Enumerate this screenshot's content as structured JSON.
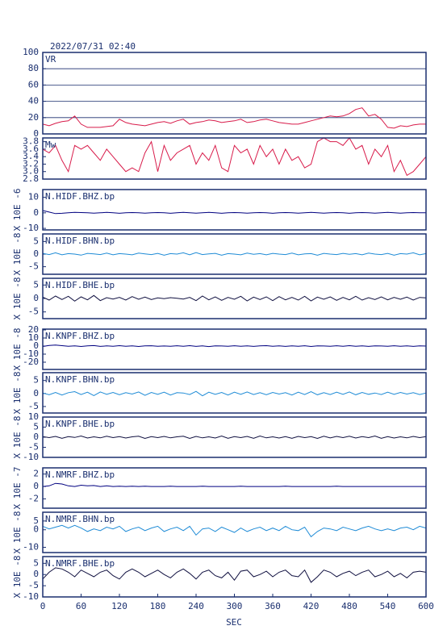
{
  "title": "2022/07/31 02:40",
  "x_axis": {
    "label": "SEC",
    "xlim": [
      0,
      600
    ],
    "xticks": [
      0,
      60,
      120,
      180,
      240,
      300,
      360,
      420,
      480,
      540,
      600
    ],
    "x": [
      0,
      10,
      20,
      30,
      40,
      50,
      60,
      70,
      80,
      90,
      100,
      110,
      120,
      130,
      140,
      150,
      160,
      170,
      180,
      190,
      200,
      210,
      220,
      230,
      240,
      250,
      260,
      270,
      280,
      290,
      300,
      310,
      320,
      330,
      340,
      350,
      360,
      370,
      380,
      390,
      400,
      410,
      420,
      430,
      440,
      450,
      460,
      470,
      480,
      490,
      500,
      510,
      520,
      530,
      540,
      550,
      560,
      570,
      580,
      590,
      600
    ]
  },
  "chart_data": [
    {
      "type": "line",
      "name": "VR",
      "ylim": [
        0,
        100
      ],
      "yticks": [
        0,
        20,
        40,
        60,
        80,
        100
      ],
      "grid": true,
      "color": "#d81b4a",
      "values": [
        12,
        10,
        13,
        15,
        16,
        22,
        12,
        8,
        8,
        8,
        9,
        10,
        18,
        14,
        12,
        11,
        10,
        12,
        14,
        15,
        13,
        16,
        18,
        12,
        14,
        15,
        17,
        16,
        14,
        15,
        16,
        18,
        14,
        15,
        17,
        18,
        16,
        14,
        13,
        12,
        12,
        14,
        16,
        18,
        20,
        22,
        21,
        22,
        25,
        30,
        32,
        22,
        24,
        18,
        8,
        7,
        10,
        9,
        11,
        12,
        12
      ]
    },
    {
      "type": "line",
      "name": "Mw",
      "ylim": [
        2.8,
        3.9
      ],
      "yticks": [
        2.8,
        {
          "value": 3,
          "label": "3.0"
        },
        3.2,
        3.4,
        3.6,
        3.8
      ],
      "grid": false,
      "color": "#d81b4a",
      "values": [
        3.6,
        3.5,
        3.7,
        3.3,
        3.0,
        3.7,
        3.6,
        3.7,
        3.5,
        3.3,
        3.6,
        3.4,
        3.2,
        3.0,
        3.1,
        3.0,
        3.5,
        3.8,
        3.0,
        3.7,
        3.3,
        3.5,
        3.6,
        3.7,
        3.2,
        3.5,
        3.3,
        3.7,
        3.1,
        3.0,
        3.7,
        3.5,
        3.6,
        3.2,
        3.7,
        3.4,
        3.6,
        3.2,
        3.6,
        3.3,
        3.4,
        3.1,
        3.2,
        3.8,
        3.9,
        3.8,
        3.8,
        3.7,
        3.9,
        3.6,
        3.7,
        3.2,
        3.6,
        3.4,
        3.7,
        3.0,
        3.3,
        2.9,
        3.0,
        3.2,
        3.4
      ]
    },
    {
      "type": "line",
      "name": "N.HIDF.BHZ.bp",
      "ylabel": "X 10E -6",
      "ylim": [
        -11,
        15
      ],
      "yticks": [
        -10,
        0,
        10
      ],
      "grid": false,
      "color": "#000080",
      "values": [
        1.5,
        0.5,
        -0.5,
        -0.3,
        0,
        0.3,
        0.2,
        0,
        -0.2,
        0,
        0.3,
        0,
        -0.3,
        0,
        0.2,
        0,
        -0.2,
        0,
        0.2,
        0,
        -0.3,
        0,
        0.3,
        0,
        -0.2,
        0,
        0.3,
        0,
        -0.3,
        0,
        0.2,
        0,
        -0.2,
        0,
        0.2,
        0,
        -0.3,
        0,
        0.2,
        0,
        -0.2,
        0,
        0.3,
        0,
        -0.2,
        0,
        0.2,
        0,
        -0.3,
        0,
        0.2,
        0,
        -0.2,
        0,
        0.3,
        0,
        -0.2,
        0,
        0.2,
        0,
        0
      ]
    },
    {
      "type": "line",
      "name": "N.HIDF.BHN.bp",
      "ylabel": "X 10E -8",
      "ylim": [
        -8,
        8
      ],
      "yticks": [
        -5,
        0,
        5
      ],
      "grid": false,
      "color": "#1e8bd6",
      "values": [
        0.3,
        -0.2,
        0.5,
        -0.3,
        0.2,
        0,
        -0.4,
        0.3,
        0.1,
        -0.2,
        0.4,
        -0.3,
        0.2,
        0,
        -0.3,
        0.4,
        0.1,
        -0.2,
        0.3,
        -0.4,
        0.2,
        0,
        0.5,
        -0.3,
        0.6,
        -0.2,
        0.1,
        0.3,
        -0.4,
        0.2,
        0,
        -0.3,
        0.4,
        -0.1,
        0.2,
        -0.3,
        0.3,
        0,
        -0.2,
        0.4,
        -0.3,
        0.1,
        0.2,
        -0.4,
        0.3,
        0,
        -0.2,
        0.3,
        -0.1,
        0.2,
        -0.3,
        0.4,
        0,
        -0.2,
        0.3,
        -0.4,
        0.2,
        0,
        0.5,
        -0.3,
        0.2
      ]
    },
    {
      "type": "line",
      "name": "N.HIDF.BHE.bp",
      "ylabel": "X 10E -8",
      "ylim": [
        -7.5,
        7.5
      ],
      "yticks": [
        -5,
        0,
        5
      ],
      "grid": false,
      "color": "#101040",
      "values": [
        0.5,
        -0.6,
        0.9,
        -0.4,
        0.8,
        -1.0,
        0.6,
        -0.5,
        1.1,
        -0.8,
        0.3,
        -0.2,
        0.4,
        -0.6,
        0.7,
        -0.3,
        0.5,
        -0.4,
        0.2,
        -0.1,
        0.3,
        0.1,
        -0.2,
        0.4,
        -0.8,
        0.9,
        -0.5,
        0.6,
        -0.7,
        0.4,
        -0.3,
        0.8,
        -0.9,
        0.5,
        -0.4,
        0.6,
        -0.8,
        0.7,
        -0.5,
        0.4,
        -0.6,
        0.8,
        -0.9,
        0.5,
        -0.3,
        0.6,
        -0.7,
        0.4,
        -0.5,
        0.8,
        -0.6,
        0.3,
        -0.4,
        0.6,
        -0.5,
        0.4,
        -0.3,
        0.5,
        -0.6,
        0.4,
        0.2
      ]
    },
    {
      "type": "line",
      "name": "N.KNPF.BHZ.bp",
      "ylabel": "X 10E -8",
      "ylim": [
        -29,
        21
      ],
      "yticks": [
        -20,
        -10,
        0,
        10,
        20
      ],
      "grid": false,
      "color": "#000080",
      "values": [
        -0.5,
        0.8,
        1.2,
        0.5,
        -0.3,
        0.2,
        -0.5,
        0.3,
        0.6,
        -0.4,
        0.2,
        -0.3,
        0.5,
        -0.2,
        0.3,
        -0.5,
        0.2,
        0.4,
        -0.3,
        0.1,
        -0.2,
        0.4,
        -0.3,
        0.5,
        -0.4,
        0.2,
        -0.6,
        0.3,
        0.1,
        -0.3,
        0.4,
        -0.2,
        0.3,
        -0.4,
        0.2,
        0.5,
        -0.3,
        0.2,
        -0.4,
        0.3,
        -0.2,
        0.4,
        -0.5,
        0.3,
        0.1,
        -0.3,
        0.4,
        -0.2,
        0.5,
        -0.3,
        0.2,
        -0.4,
        0.3,
        0.1,
        -0.3,
        0.4,
        -0.2,
        0.3,
        -0.4,
        0.2,
        0
      ]
    },
    {
      "type": "line",
      "name": "N.KNPF.BHN.bp",
      "ylabel": "X 10E -8",
      "ylim": [
        -7.5,
        8
      ],
      "yticks": [
        -5,
        0,
        5
      ],
      "grid": false,
      "color": "#1e8bd6",
      "values": [
        0.2,
        -0.5,
        0.4,
        -0.6,
        0.3,
        0.7,
        -0.4,
        0.5,
        -0.8,
        0.6,
        -0.3,
        0.4,
        -0.5,
        0.3,
        -0.2,
        0.6,
        -0.7,
        0.4,
        -0.3,
        0.5,
        -0.6,
        0.3,
        0.2,
        -0.4,
        0.8,
        -0.9,
        0.5,
        -0.3,
        0.4,
        -0.6,
        0.5,
        -0.3,
        0.6,
        -0.4,
        0.3,
        -0.5,
        0.4,
        -0.2,
        0.3,
        -0.6,
        0.5,
        -0.4,
        0.7,
        -0.5,
        0.3,
        -0.4,
        0.5,
        -0.3,
        0.6,
        -0.5,
        0.4,
        -0.3,
        0.2,
        -0.4,
        0.5,
        -0.3,
        0.4,
        -0.2,
        0.3,
        -0.4,
        0.2
      ]
    },
    {
      "type": "line",
      "name": "N.KNPF.BHE.bp",
      "ylabel": "X 10E -8",
      "ylim": [
        -10,
        10
      ],
      "yticks": [
        -10,
        -5,
        0,
        5,
        10
      ],
      "grid": false,
      "color": "#101040",
      "values": [
        0.3,
        -0.2,
        0.4,
        -0.5,
        0.3,
        -0.1,
        0.6,
        -0.4,
        0.2,
        -0.3,
        0.5,
        -0.2,
        0.3,
        -0.4,
        0.2,
        0.5,
        -0.6,
        0.3,
        -0.2,
        0.4,
        -0.3,
        0.2,
        0.5,
        -0.6,
        0.4,
        -0.3,
        0.2,
        -0.4,
        0.6,
        -0.5,
        0.3,
        -0.2,
        0.4,
        -0.5,
        0.6,
        -0.3,
        0.2,
        -0.4,
        0.3,
        -0.5,
        0.4,
        -0.2,
        0.3,
        -0.6,
        0.5,
        -0.3,
        0.4,
        -0.2,
        0.5,
        -0.4,
        0.3,
        -0.2,
        0.6,
        -0.5,
        0.3,
        -0.4,
        0.2,
        -0.3,
        0.4,
        -0.2,
        0.3
      ]
    },
    {
      "type": "line",
      "name": "N.NMRF.BHZ.bp",
      "ylabel": "X 10E -7",
      "ylim": [
        -3.5,
        3
      ],
      "yticks": [
        -2,
        0,
        2
      ],
      "grid": false,
      "color": "#000080",
      "values": [
        0,
        0.1,
        0.5,
        0.4,
        0.1,
        0,
        0.2,
        0.1,
        0.15,
        0,
        0.1,
        0,
        0.05,
        0,
        0.05,
        0,
        0.05,
        0,
        0,
        0,
        0.05,
        0,
        0,
        0,
        0,
        0.05,
        0,
        0,
        0,
        0,
        0,
        0.05,
        0,
        0,
        0,
        0,
        0,
        0,
        0.05,
        0,
        0,
        0,
        0,
        0,
        0,
        0,
        0.05,
        0,
        0,
        0,
        0,
        0,
        0,
        0,
        0,
        0,
        0,
        0,
        0,
        0,
        0
      ]
    },
    {
      "type": "line",
      "name": "N.NMRF.BHN.bp",
      "ylabel": "X 10E -8",
      "ylim": [
        -13,
        10
      ],
      "yticks": [
        -10,
        0,
        5
      ],
      "grid": false,
      "color": "#1e8bd6",
      "values": [
        2,
        0.5,
        1.5,
        2.5,
        1,
        2.5,
        1,
        -1,
        0.5,
        -0.5,
        1.5,
        0.5,
        2,
        -1,
        0.5,
        1.5,
        -0.5,
        1,
        2,
        -1,
        0.5,
        1.5,
        -0.5,
        2,
        -3,
        0.5,
        1,
        -1,
        1.5,
        0,
        -1.5,
        1,
        -1,
        0.5,
        1.5,
        -0.5,
        1,
        -0.5,
        2,
        0,
        -0.5,
        1.5,
        -4,
        -1,
        1,
        0.5,
        -0.5,
        1.5,
        0.5,
        -0.5,
        1,
        2,
        0.5,
        -0.5,
        0.5,
        -0.5,
        1,
        1.5,
        0,
        2,
        1
      ]
    },
    {
      "type": "line",
      "name": "N.NMRF.BHE.bp",
      "ylabel": "X 10E -8",
      "ylim": [
        -10,
        8
      ],
      "yticks": [
        -10,
        -5,
        0,
        5
      ],
      "grid": false,
      "color": "#101040",
      "values": [
        -2,
        1,
        3,
        2.5,
        1,
        -1,
        2,
        0.5,
        -1,
        1,
        2,
        -0.5,
        -2,
        1,
        2.5,
        1,
        -1,
        0.5,
        2,
        0,
        -1.5,
        1,
        2.5,
        0.5,
        -2,
        1,
        2,
        -0.5,
        -1.5,
        1,
        -2.5,
        1.5,
        2,
        -1,
        0,
        1.5,
        -1,
        1,
        2,
        -0.5,
        -1,
        2,
        -3.5,
        -1,
        2,
        1,
        -1,
        0.5,
        1.5,
        -0.5,
        1,
        2,
        -1,
        0,
        1.5,
        -1,
        0.5,
        -1.5,
        1,
        1.5,
        1
      ]
    }
  ]
}
